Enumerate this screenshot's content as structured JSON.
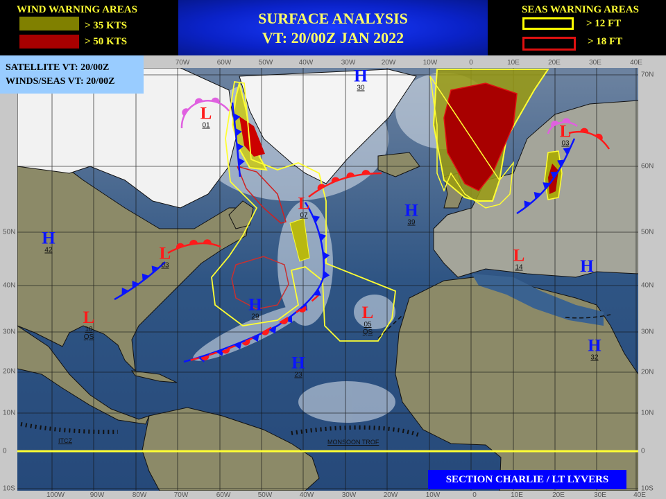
{
  "header": {
    "title_line1": "SURFACE ANALYSIS",
    "title_line2": "VT: 20/00Z JAN 2022",
    "wind_legend": {
      "title": "WIND WARNING AREAS",
      "items": [
        {
          "label": "> 35 KTS",
          "color": "#808000"
        },
        {
          "label": "> 50 KTS",
          "color": "#a80000"
        }
      ]
    },
    "seas_legend": {
      "title": "SEAS WARNING AREAS",
      "items": [
        {
          "label": "> 12 FT",
          "color": "#ffff00"
        },
        {
          "label": "> 18 FT",
          "color": "#e01010"
        }
      ]
    }
  },
  "info_box": {
    "line1": "SATELLITE  VT: 20/00Z",
    "line2": "WINDS/SEAS VT: 20/00Z"
  },
  "axes": {
    "top_lon": [
      "70W",
      "60W",
      "50W",
      "40W",
      "30W",
      "20W",
      "10W",
      "0",
      "10E",
      "20E",
      "30E",
      "40E"
    ],
    "bottom_lon": [
      "100W",
      "90W",
      "80W",
      "70W",
      "60W",
      "50W",
      "40W",
      "30W",
      "20W",
      "10W",
      "0",
      "10E",
      "20E",
      "30E",
      "40E"
    ],
    "left_lat": [
      "50N",
      "40N",
      "30N",
      "20N",
      "10N",
      "0",
      "10S"
    ],
    "right_lat": [
      "70N",
      "60N",
      "50N",
      "40N",
      "30N",
      "20N",
      "10N",
      "0",
      "10S"
    ]
  },
  "pressure_systems": [
    {
      "type": "H",
      "value": "42"
    },
    {
      "type": "L",
      "value": "03"
    },
    {
      "type": "L",
      "value": "10",
      "note": "QS"
    },
    {
      "type": "H",
      "value": "29"
    },
    {
      "type": "H",
      "value": "23"
    },
    {
      "type": "L",
      "value": "07"
    },
    {
      "type": "H",
      "value": "39"
    },
    {
      "type": "L",
      "value": "05",
      "note": "QS"
    },
    {
      "type": "H",
      "value": "30"
    },
    {
      "type": "L",
      "value": "01"
    },
    {
      "type": "L",
      "value": "03"
    },
    {
      "type": "L",
      "value": "14"
    },
    {
      "type": "H",
      "value": ""
    },
    {
      "type": "H",
      "value": "32"
    }
  ],
  "features": {
    "itcz_label": "ITCZ",
    "monsoon_label": "MONSOON TROF"
  },
  "colors": {
    "cold_front": "#0a14ff",
    "warm_front": "#ff1a1a",
    "occluded_front": "#e060e0",
    "equator": "#ffff33",
    "ocean": "#2f5584",
    "land": "#8c8a68"
  },
  "footer": {
    "credit": "SECTION CHARLIE / LT LYVERS"
  }
}
